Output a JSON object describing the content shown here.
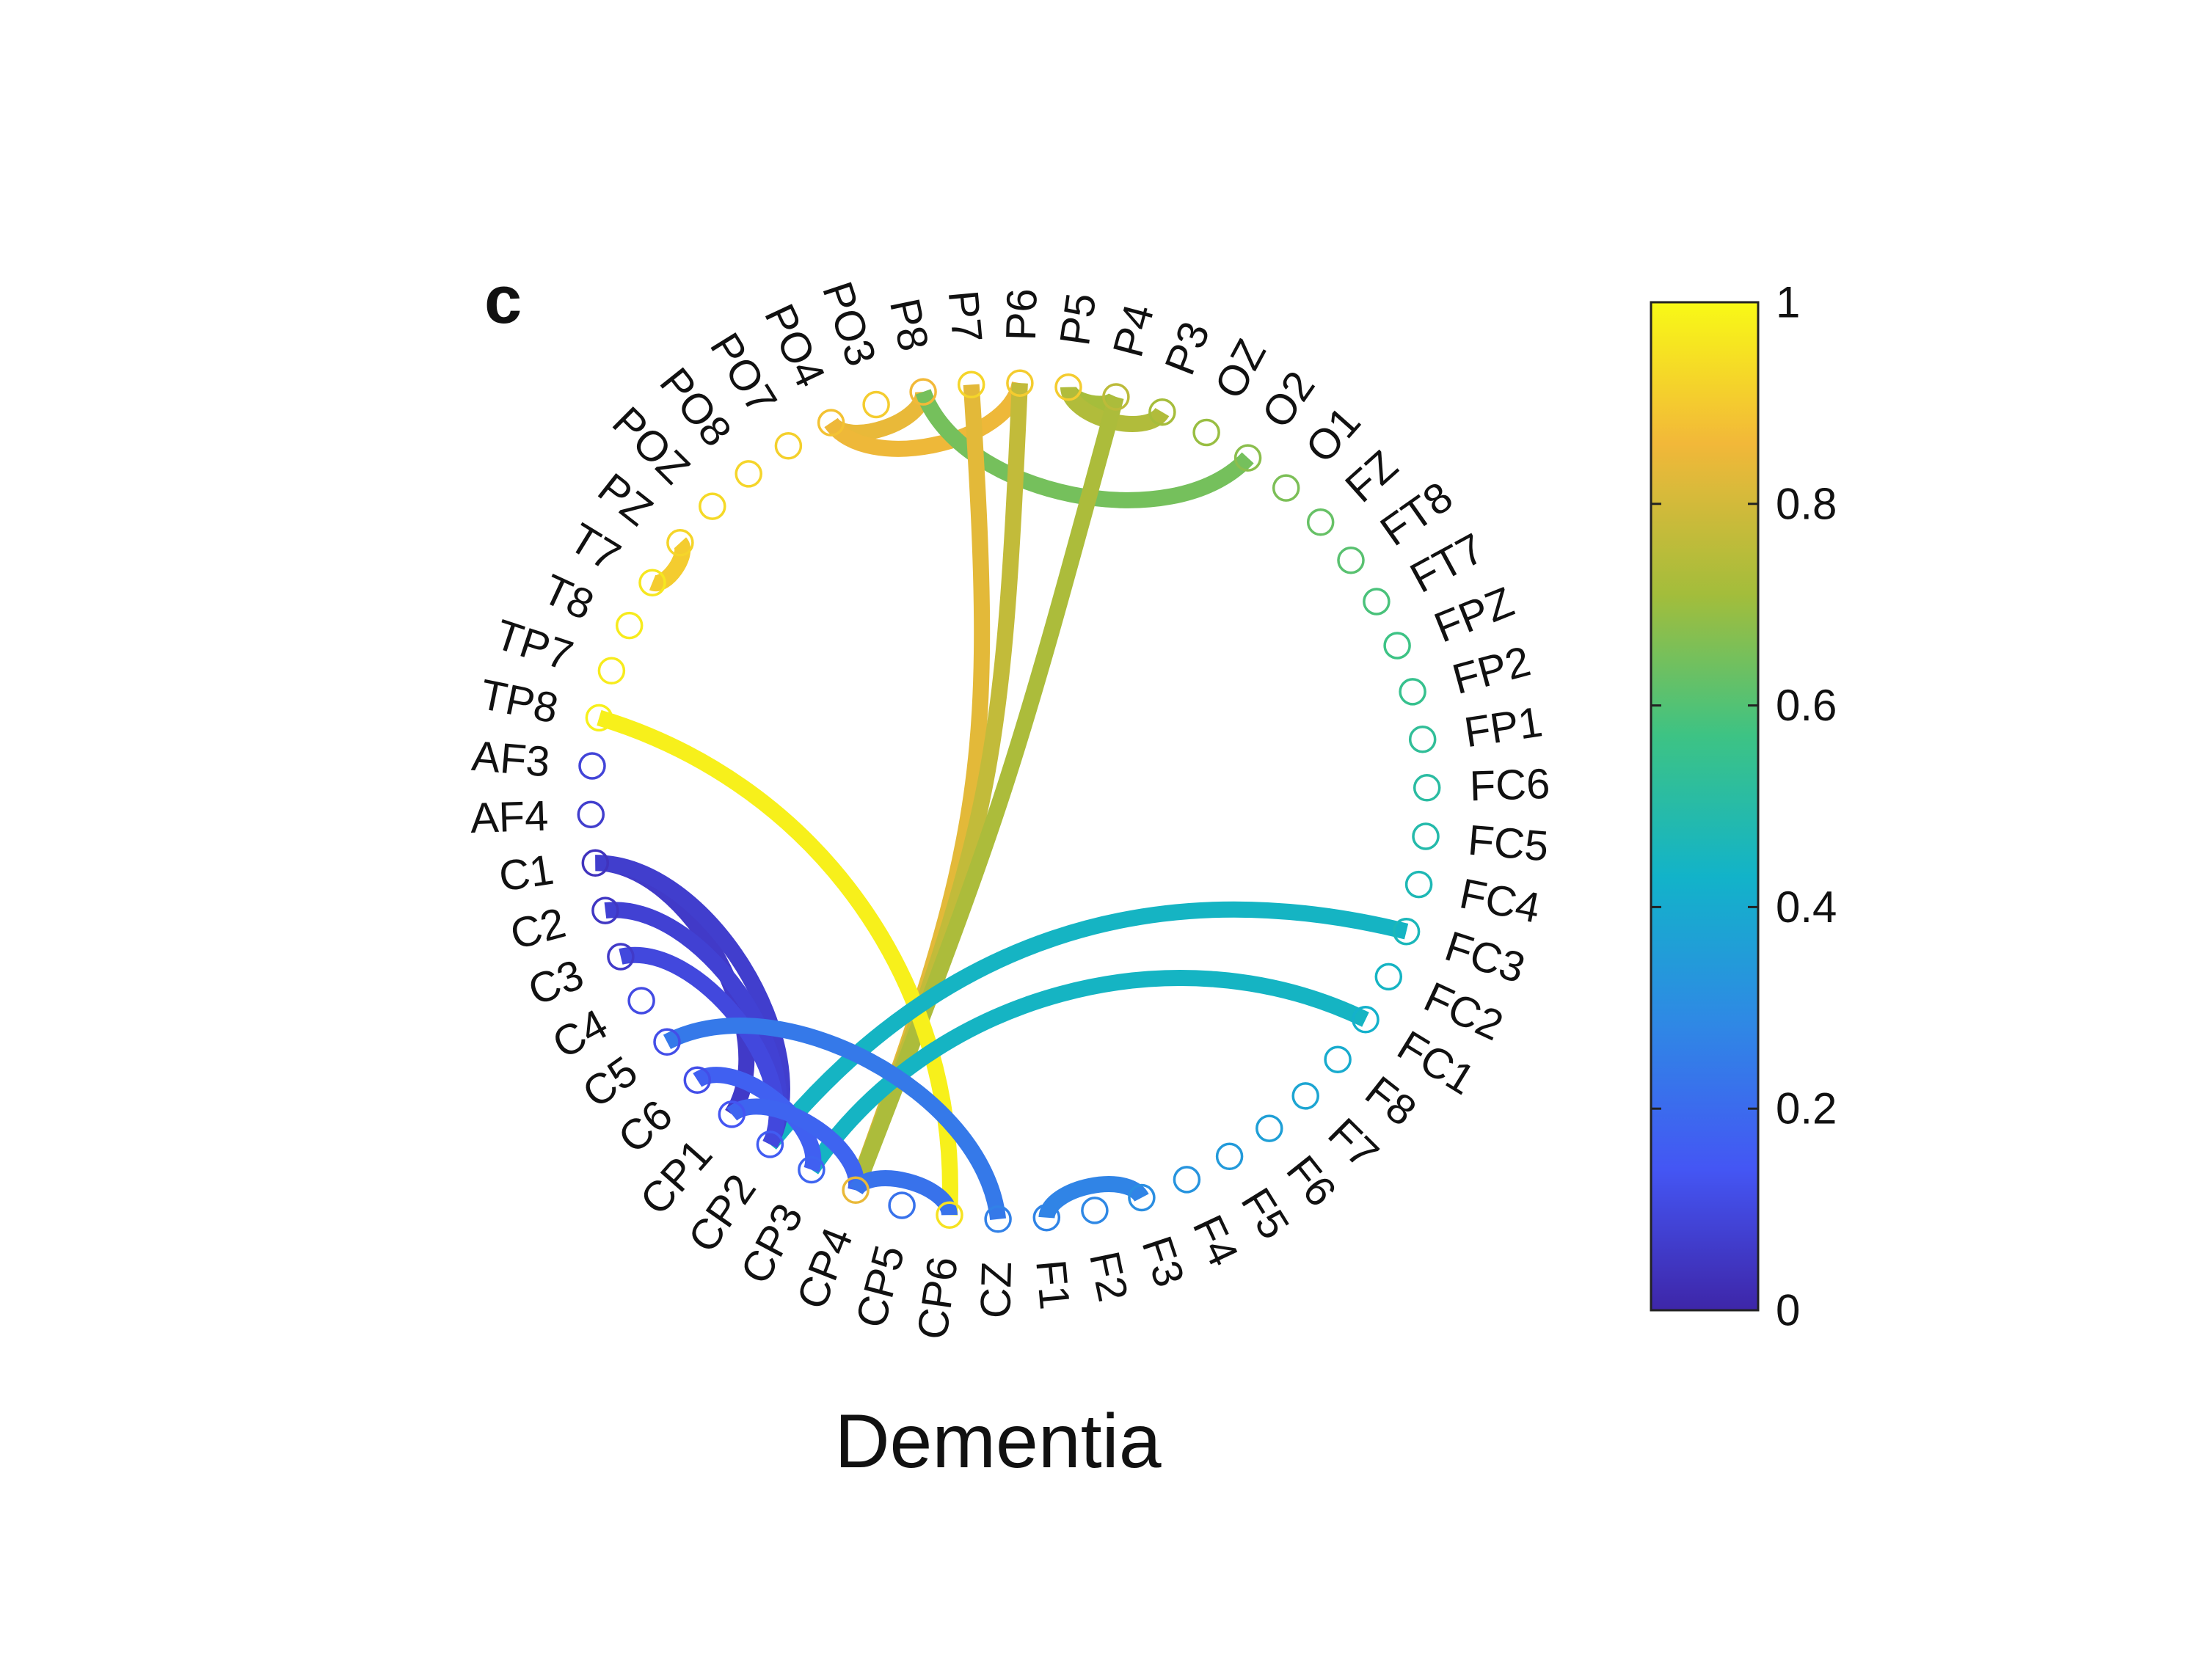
{
  "panel_letter": "c",
  "caption": "Dementia",
  "colorbar": {
    "ticks": [
      {
        "value": 0,
        "label": "0"
      },
      {
        "value": 0.2,
        "label": "0.2"
      },
      {
        "value": 0.4,
        "label": "0.4"
      },
      {
        "value": 0.6,
        "label": "0.6"
      },
      {
        "value": 0.8,
        "label": "0.8"
      },
      {
        "value": 1,
        "label": "1"
      }
    ],
    "colors": [
      "#3e26a8",
      "#4456f4",
      "#2e8ae4",
      "#12b3c9",
      "#3dc384",
      "#a3bd3b",
      "#f2b839",
      "#f8f916"
    ]
  },
  "nodes": [
    {
      "label": "P6",
      "value": 0.9
    },
    {
      "label": "P5",
      "value": 0.9
    },
    {
      "label": "P4",
      "value": 0.76
    },
    {
      "label": "P3",
      "value": 0.72
    },
    {
      "label": "OZ",
      "value": 0.7
    },
    {
      "label": "O2",
      "value": 0.68
    },
    {
      "label": "O1",
      "value": 0.66
    },
    {
      "label": "FZ",
      "value": 0.63
    },
    {
      "label": "FT8",
      "value": 0.61
    },
    {
      "label": "FT7",
      "value": 0.59
    },
    {
      "label": "FPZ",
      "value": 0.57
    },
    {
      "label": "FP2",
      "value": 0.55
    },
    {
      "label": "FP1",
      "value": 0.53
    },
    {
      "label": "FC6",
      "value": 0.51
    },
    {
      "label": "FC5",
      "value": 0.49
    },
    {
      "label": "FC4",
      "value": 0.47
    },
    {
      "label": "FC3",
      "value": 0.46
    },
    {
      "label": "FC2",
      "value": 0.44
    },
    {
      "label": "FC1",
      "value": 0.42
    },
    {
      "label": "F8",
      "value": 0.4
    },
    {
      "label": "F7",
      "value": 0.38
    },
    {
      "label": "F6",
      "value": 0.36
    },
    {
      "label": "F5",
      "value": 0.34
    },
    {
      "label": "F4",
      "value": 0.32
    },
    {
      "label": "F3",
      "value": 0.3
    },
    {
      "label": "F2",
      "value": 0.28
    },
    {
      "label": "F1",
      "value": 0.27
    },
    {
      "label": "CZ",
      "value": 0.26
    },
    {
      "label": "CP6",
      "value": 0.95
    },
    {
      "label": "CP5",
      "value": 0.22
    },
    {
      "label": "CP4",
      "value": 0.84
    },
    {
      "label": "CP3",
      "value": 0.18
    },
    {
      "label": "CP2",
      "value": 0.16
    },
    {
      "label": "CP1",
      "value": 0.14
    },
    {
      "label": "C6",
      "value": 0.12
    },
    {
      "label": "C5",
      "value": 0.12
    },
    {
      "label": "C4",
      "value": 0.11
    },
    {
      "label": "C3",
      "value": 0.06
    },
    {
      "label": "C2",
      "value": 0.05
    },
    {
      "label": "C1",
      "value": 0.04
    },
    {
      "label": "AF4",
      "value": 0.07
    },
    {
      "label": "AF3",
      "value": 0.09
    },
    {
      "label": "TP8",
      "value": 0.98
    },
    {
      "label": "TP7",
      "value": 0.97
    },
    {
      "label": "T8",
      "value": 0.97
    },
    {
      "label": "T7",
      "value": 0.96
    },
    {
      "label": "PZ",
      "value": 0.92
    },
    {
      "label": "POZ",
      "value": 0.93
    },
    {
      "label": "PO8",
      "value": 0.92
    },
    {
      "label": "PO7",
      "value": 0.91
    },
    {
      "label": "PO4",
      "value": 0.88
    },
    {
      "label": "PO3",
      "value": 0.9
    },
    {
      "label": "P8",
      "value": 0.86
    },
    {
      "label": "P7",
      "value": 0.92
    }
  ],
  "connections": [
    {
      "from": "P8",
      "to": "PO4",
      "value": 0.84
    },
    {
      "from": "PO4",
      "to": "P6",
      "value": 0.85
    },
    {
      "from": "P8",
      "to": "O2",
      "value": 0.65
    },
    {
      "from": "P7",
      "to": "CP4",
      "value": 0.83
    },
    {
      "from": "P6",
      "to": "CP4",
      "value": 0.77
    },
    {
      "from": "P5",
      "to": "P4",
      "value": 0.72
    },
    {
      "from": "P5",
      "to": "P3",
      "value": 0.74
    },
    {
      "from": "P4",
      "to": "CP4",
      "value": 0.73
    },
    {
      "from": "PZ",
      "to": "T7",
      "value": 0.9
    },
    {
      "from": "TP8",
      "to": "CP6",
      "value": 0.98
    },
    {
      "from": "FC3",
      "to": "CP2",
      "value": 0.44
    },
    {
      "from": "FC1",
      "to": "CP3",
      "value": 0.44
    },
    {
      "from": "C1",
      "to": "CP1",
      "value": 0.06
    },
    {
      "from": "C1",
      "to": "CP2",
      "value": 0.07
    },
    {
      "from": "C2",
      "to": "CP2",
      "value": 0.08
    },
    {
      "from": "C3",
      "to": "CP2",
      "value": 0.1
    },
    {
      "from": "C5",
      "to": "CZ",
      "value": 0.24
    },
    {
      "from": "C6",
      "to": "CP3",
      "value": 0.17
    },
    {
      "from": "CP1",
      "to": "CP4",
      "value": 0.18
    },
    {
      "from": "CP4",
      "to": "CP6",
      "value": 0.22
    },
    {
      "from": "F1",
      "to": "F3",
      "value": 0.27
    }
  ]
}
